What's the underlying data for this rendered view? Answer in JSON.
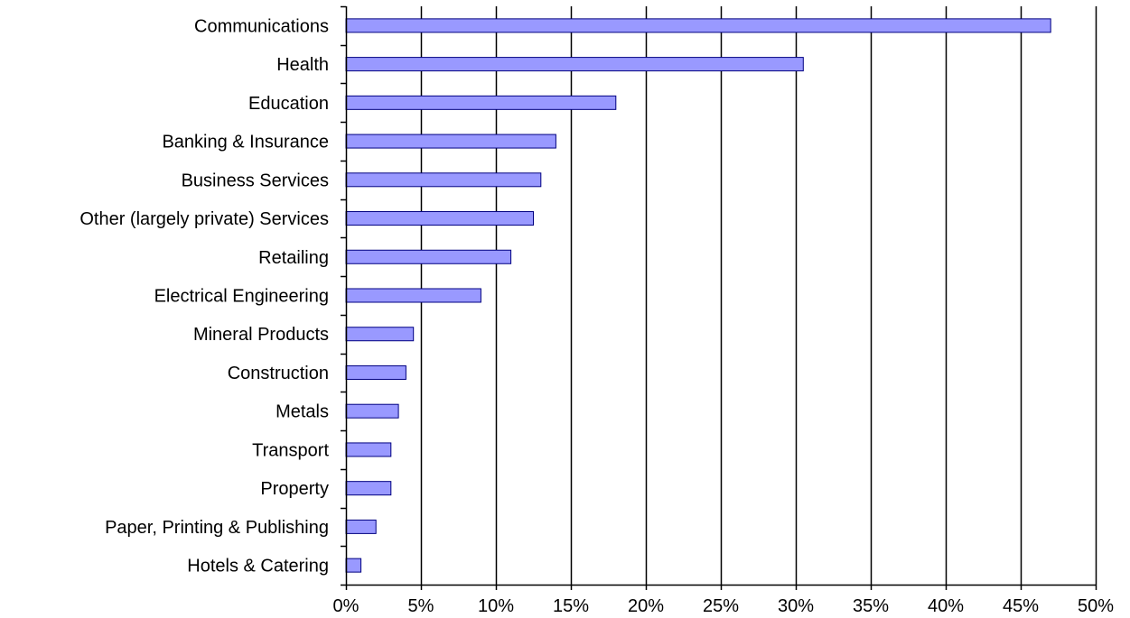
{
  "chart_data": {
    "type": "bar",
    "orientation": "horizontal",
    "categories": [
      "Communications",
      "Health",
      "Education",
      "Banking & Insurance",
      "Business Services",
      "Other (largely private) Services",
      "Retailing",
      "Electrical Engineering",
      "Mineral Products",
      "Construction",
      "Metals",
      "Transport",
      "Property",
      "Paper, Printing & Publishing",
      "Hotels & Catering"
    ],
    "values": [
      47,
      30.5,
      18,
      14,
      13,
      12.5,
      11,
      9,
      4.5,
      4,
      3.5,
      3,
      3,
      2,
      1
    ],
    "xlim": [
      0,
      50
    ],
    "x_ticks": [
      0,
      5,
      10,
      15,
      20,
      25,
      30,
      35,
      40,
      45,
      50
    ],
    "x_tick_labels": [
      "0%",
      "5%",
      "10%",
      "15%",
      "20%",
      "25%",
      "30%",
      "35%",
      "40%",
      "45%",
      "50%"
    ],
    "grid": "vertical",
    "legend": "none",
    "bar_color": "#9999ff",
    "bar_edge_color": "#000080"
  }
}
